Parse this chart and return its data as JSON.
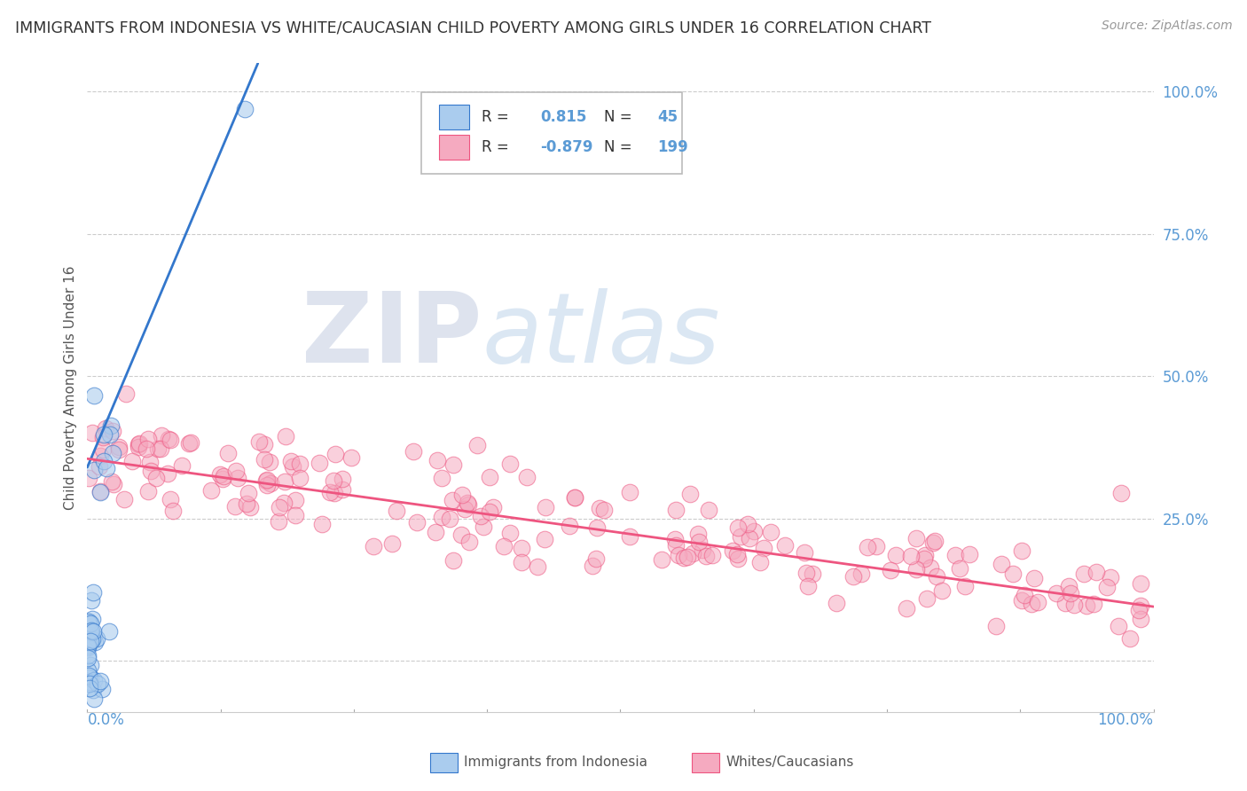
{
  "title": "IMMIGRANTS FROM INDONESIA VS WHITE/CAUCASIAN CHILD POVERTY AMONG GIRLS UNDER 16 CORRELATION CHART",
  "source": "Source: ZipAtlas.com",
  "ylabel": "Child Poverty Among Girls Under 16",
  "watermark_zip": "ZIP",
  "watermark_atlas": "atlas",
  "background_color": "#ffffff",
  "blue_scatter_color": "#aaccee",
  "pink_scatter_color": "#f5aac0",
  "blue_line_color": "#3377cc",
  "pink_line_color": "#ee5580",
  "blue_R": 0.815,
  "blue_N": 45,
  "pink_R": -0.879,
  "pink_N": 199,
  "right_tick_color": "#5b9bd5",
  "axis_label_color": "#555555",
  "grid_color": "#cccccc",
  "legend_text_color": "#333333",
  "legend_value_color": "#5b9bd5"
}
